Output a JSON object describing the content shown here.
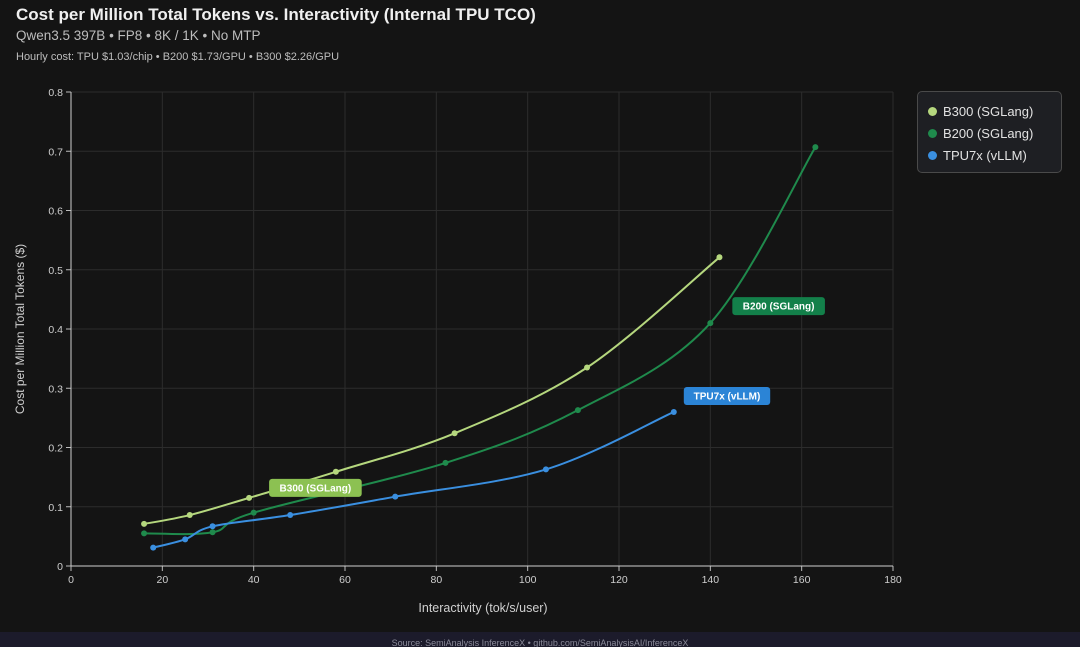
{
  "header": {
    "title": "Cost per Million Total Tokens vs. Interactivity (Internal TPU TCO)",
    "subtitle": "Qwen3.5 397B • FP8 • 8K / 1K • No MTP",
    "note": "Hourly cost: TPU $1.03/chip • B200 $1.73/GPU • B300 $2.26/GPU"
  },
  "footer": {
    "text": "Source: SemiAnalysis InferenceX • github.com/SemiAnalysisAI/InferenceX"
  },
  "chart_data": {
    "type": "line",
    "title": "Cost per Million Total Tokens vs. Interactivity (Internal TPU TCO)",
    "xlabel": "Interactivity (tok/s/user)",
    "ylabel": "Cost per Million Total Tokens ($)",
    "xlim": [
      0,
      180
    ],
    "ylim": [
      0,
      0.8
    ],
    "xticks": [
      "0",
      "20",
      "40",
      "60",
      "80",
      "100",
      "120",
      "140",
      "160",
      "180"
    ],
    "yticks": [
      "0",
      "0.1",
      "0.2",
      "0.3",
      "0.4",
      "0.5",
      "0.6",
      "0.7",
      "0.8"
    ],
    "grid": true,
    "legend_position": "top-right",
    "series": [
      {
        "name": "B300 (SGLang)",
        "color": "#b5d77e",
        "label_color": "#8cc152",
        "x": [
          16,
          26,
          39,
          58,
          84,
          113,
          142
        ],
        "y": [
          0.071,
          0.086,
          0.115,
          0.159,
          0.224,
          0.335,
          0.521
        ]
      },
      {
        "name": "B200 (SGLang)",
        "color": "#1f8a4c",
        "label_color": "#13804a",
        "x": [
          16,
          31,
          40,
          82,
          111,
          140,
          163
        ],
        "y": [
          0.055,
          0.057,
          0.09,
          0.174,
          0.263,
          0.41,
          0.707
        ]
      },
      {
        "name": "TPU7x (vLLM)",
        "color": "#3a8fe0",
        "label_color": "#2b84d6",
        "x": [
          18,
          25,
          31,
          48,
          71,
          104,
          132
        ],
        "y": [
          0.031,
          0.045,
          0.067,
          0.086,
          0.117,
          0.163,
          0.26
        ]
      }
    ],
    "annotations": [
      {
        "text": "B300 (SGLang)",
        "series": 0
      },
      {
        "text": "B200 (SGLang)",
        "series": 1
      },
      {
        "text": "TPU7x (vLLM)",
        "series": 2
      }
    ]
  }
}
